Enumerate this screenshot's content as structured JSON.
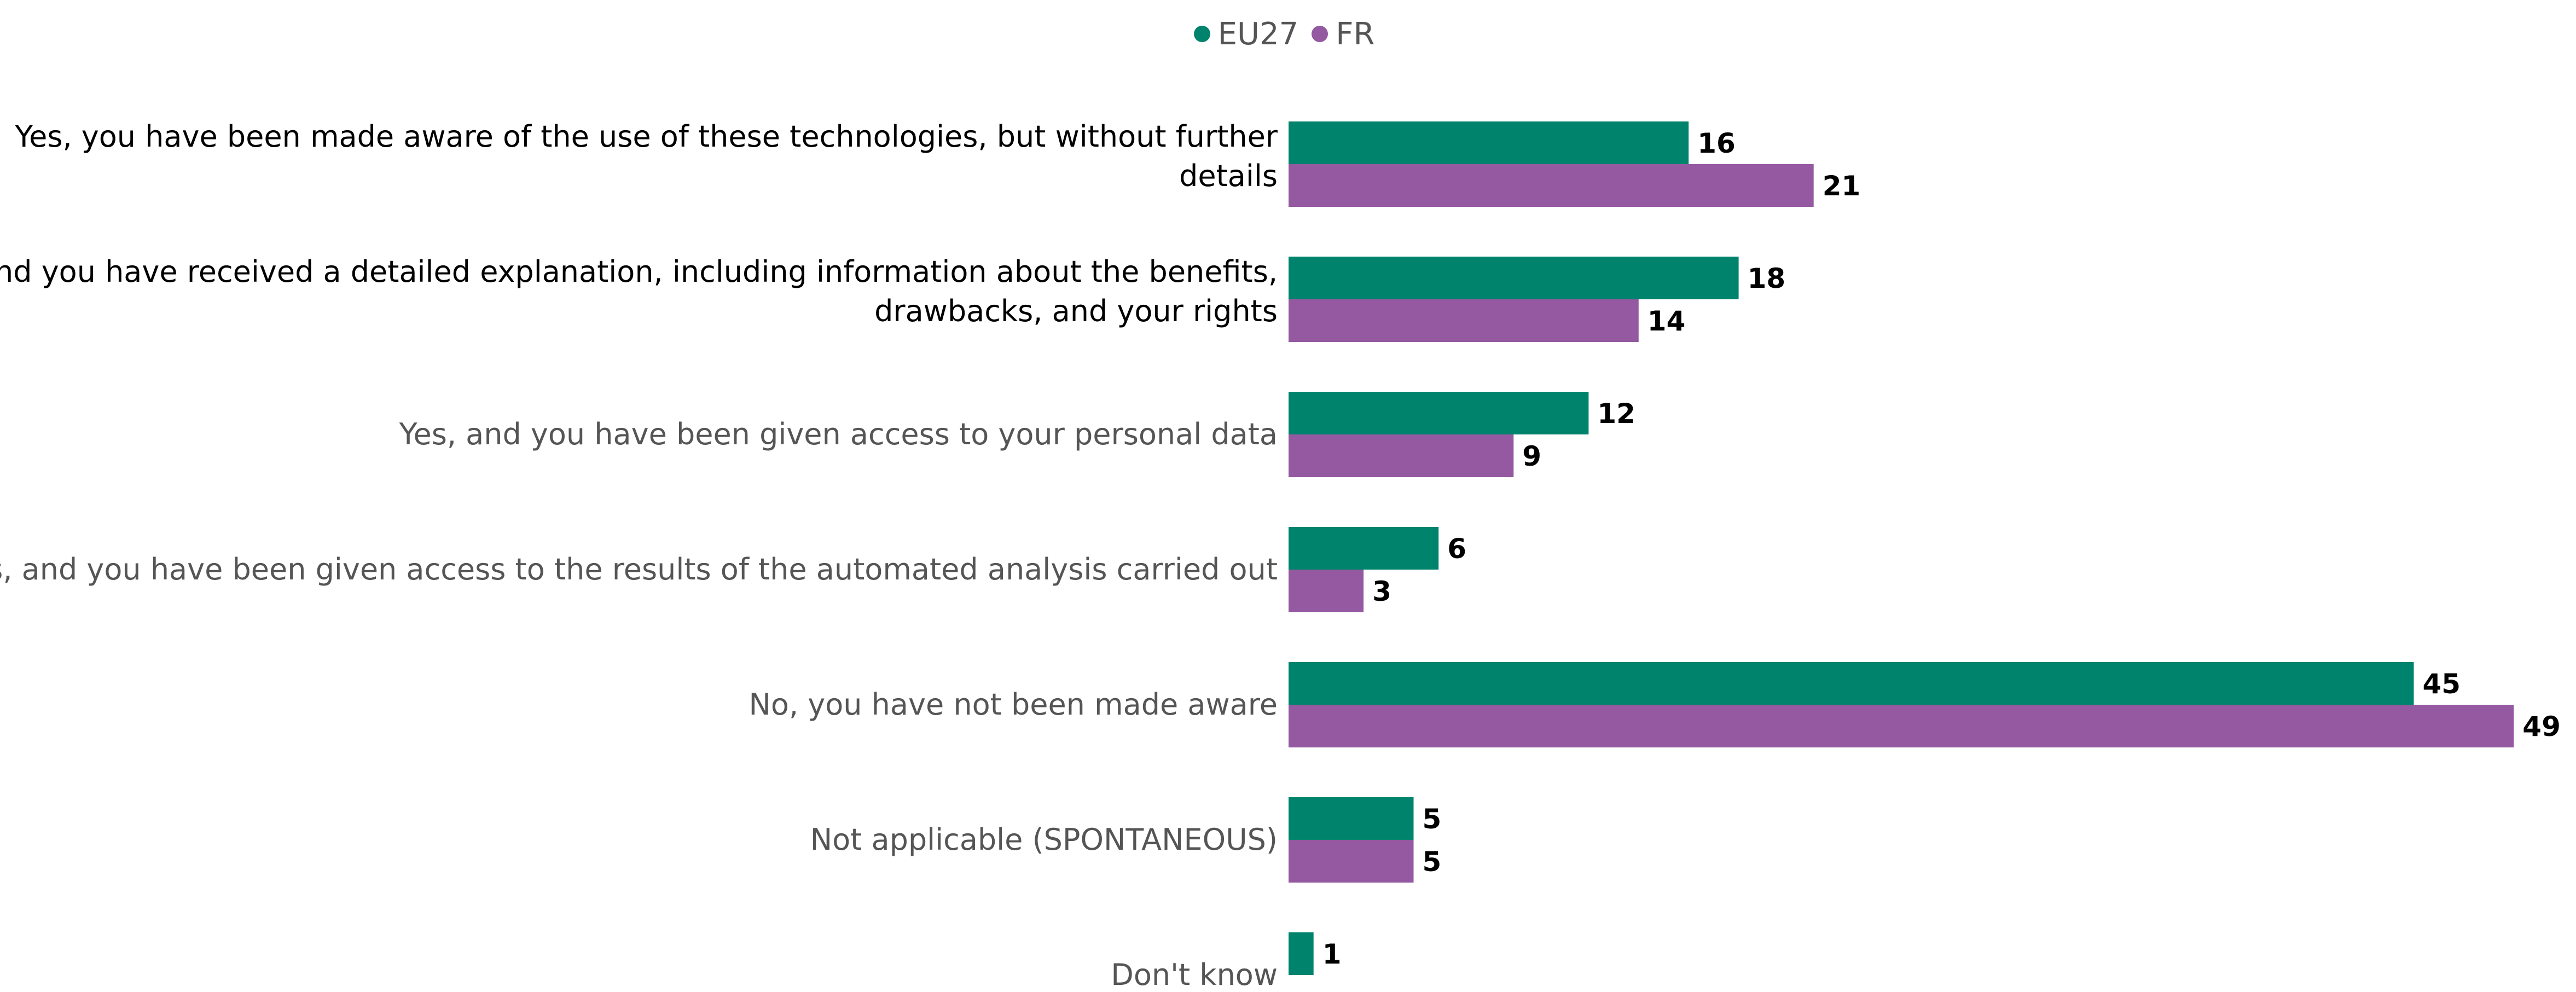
{
  "chart_data": {
    "type": "bar",
    "orientation": "horizontal",
    "categories": [
      [
        "Yes, you have been made aware of the use of these technologies, but without further",
        "details"
      ],
      [
        "Yes, and you have received a detailed explanation, including information about the benefits,",
        "drawbacks, and your rights"
      ],
      [
        "Yes, and you have been given access to your personal data"
      ],
      [
        "Yes, and you have been given access to the results of the automated analysis carried out"
      ],
      [
        "No, you have not been made aware"
      ],
      [
        "Not applicable (SPONTANEOUS)"
      ],
      [
        "Don't know"
      ]
    ],
    "category_label_colors": [
      "#000000",
      "#000000",
      "#555555",
      "#555555",
      "#555555",
      "#555555",
      "#555555"
    ],
    "series": [
      {
        "name": "EU27",
        "color": "#00836c",
        "values": [
          16,
          18,
          12,
          6,
          45,
          5,
          1
        ]
      },
      {
        "name": "FR",
        "color": "#9459a0",
        "values": [
          21,
          14,
          9,
          3,
          49,
          5,
          null
        ]
      }
    ],
    "legend_position": "top-center",
    "grid": false,
    "xlim": [
      0,
      50
    ]
  }
}
